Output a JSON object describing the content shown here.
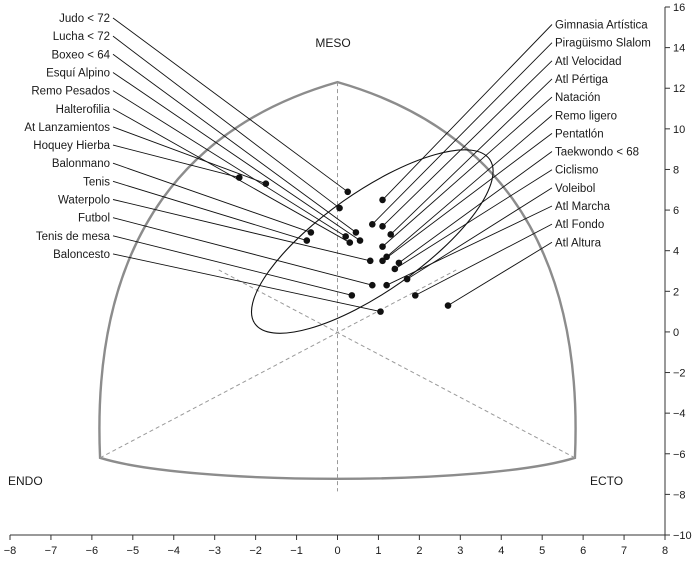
{
  "chart_data": {
    "type": "scatter",
    "title": "",
    "xlabel": "",
    "ylabel": "",
    "xlim": [
      -8,
      8
    ],
    "ylim": [
      -10,
      16
    ],
    "x_ticks": [
      -8,
      -7,
      -6,
      -5,
      -4,
      -3,
      -2,
      -1,
      0,
      1,
      2,
      3,
      4,
      5,
      6,
      7,
      8
    ],
    "y_ticks": [
      -10,
      -8,
      -6,
      -4,
      -2,
      0,
      2,
      4,
      6,
      8,
      10,
      12,
      14,
      16
    ],
    "grid": false,
    "corner_labels": {
      "top": "MESO",
      "left": "ENDO",
      "right": "ECTO"
    },
    "somatochart": {
      "meso_apex": [
        0,
        12.3
      ],
      "endo_corner": [
        -5.8,
        -6.2
      ],
      "ecto_corner": [
        5.8,
        -6.2
      ]
    },
    "ellipse": {
      "center": [
        0.85,
        4.45
      ],
      "rx": 3.5,
      "ry": 2.45,
      "angle_deg": -35
    },
    "points": [
      {
        "label": "Judo < 72",
        "x": 0.25,
        "y": 6.9,
        "side": "left"
      },
      {
        "label": "Lucha < 72",
        "x": 0.05,
        "y": 6.1,
        "side": "left"
      },
      {
        "label": "Boxeo < 64",
        "x": 0.45,
        "y": 4.9,
        "side": "left"
      },
      {
        "label": "Esquí Alpino",
        "x": 0.55,
        "y": 4.5,
        "side": "left"
      },
      {
        "label": "Remo Pesados",
        "x": 0.2,
        "y": 4.7,
        "side": "left"
      },
      {
        "label": "Halterofilia",
        "x": 0.3,
        "y": 4.4,
        "side": "left"
      },
      {
        "label": "At Lanzamientos",
        "x": -1.75,
        "y": 7.3,
        "side": "left"
      },
      {
        "label": "Hoquey Hierba",
        "x": -2.4,
        "y": 7.6,
        "side": "left"
      },
      {
        "label": "Balonmano",
        "x": -0.65,
        "y": 4.9,
        "side": "left"
      },
      {
        "label": "Tenis",
        "x": -0.75,
        "y": 4.5,
        "side": "left"
      },
      {
        "label": "Waterpolo",
        "x": 0.8,
        "y": 3.5,
        "side": "left"
      },
      {
        "label": "Futbol",
        "x": 0.85,
        "y": 2.3,
        "side": "left"
      },
      {
        "label": "Tenis de mesa",
        "x": 0.35,
        "y": 1.8,
        "side": "left"
      },
      {
        "label": "Baloncesto",
        "x": 1.05,
        "y": 1.0,
        "side": "left"
      },
      {
        "label": "Gimnasia Artística",
        "x": 1.1,
        "y": 6.5,
        "side": "right"
      },
      {
        "label": "Piragüismo Slalom",
        "x": 0.85,
        "y": 5.3,
        "side": "right"
      },
      {
        "label": "Atl Velocidad",
        "x": 1.1,
        "y": 5.2,
        "side": "right"
      },
      {
        "label": "Atl Pértiga",
        "x": 1.3,
        "y": 4.8,
        "side": "right"
      },
      {
        "label": "Natación",
        "x": 1.1,
        "y": 4.2,
        "side": "right"
      },
      {
        "label": "Remo ligero",
        "x": 1.2,
        "y": 3.7,
        "side": "right"
      },
      {
        "label": "Pentatlón",
        "x": 1.1,
        "y": 3.5,
        "side": "right"
      },
      {
        "label": "Taekwondo < 68",
        "x": 1.5,
        "y": 3.4,
        "side": "right"
      },
      {
        "label": "Ciclismo",
        "x": 1.4,
        "y": 3.1,
        "side": "right"
      },
      {
        "label": "Voleibol",
        "x": 1.7,
        "y": 2.6,
        "side": "right"
      },
      {
        "label": "Atl Marcha",
        "x": 1.2,
        "y": 2.3,
        "side": "right"
      },
      {
        "label": "Atl Fondo",
        "x": 1.9,
        "y": 1.8,
        "side": "right"
      },
      {
        "label": "Atl Altura",
        "x": 2.7,
        "y": 1.3,
        "side": "right"
      }
    ]
  }
}
